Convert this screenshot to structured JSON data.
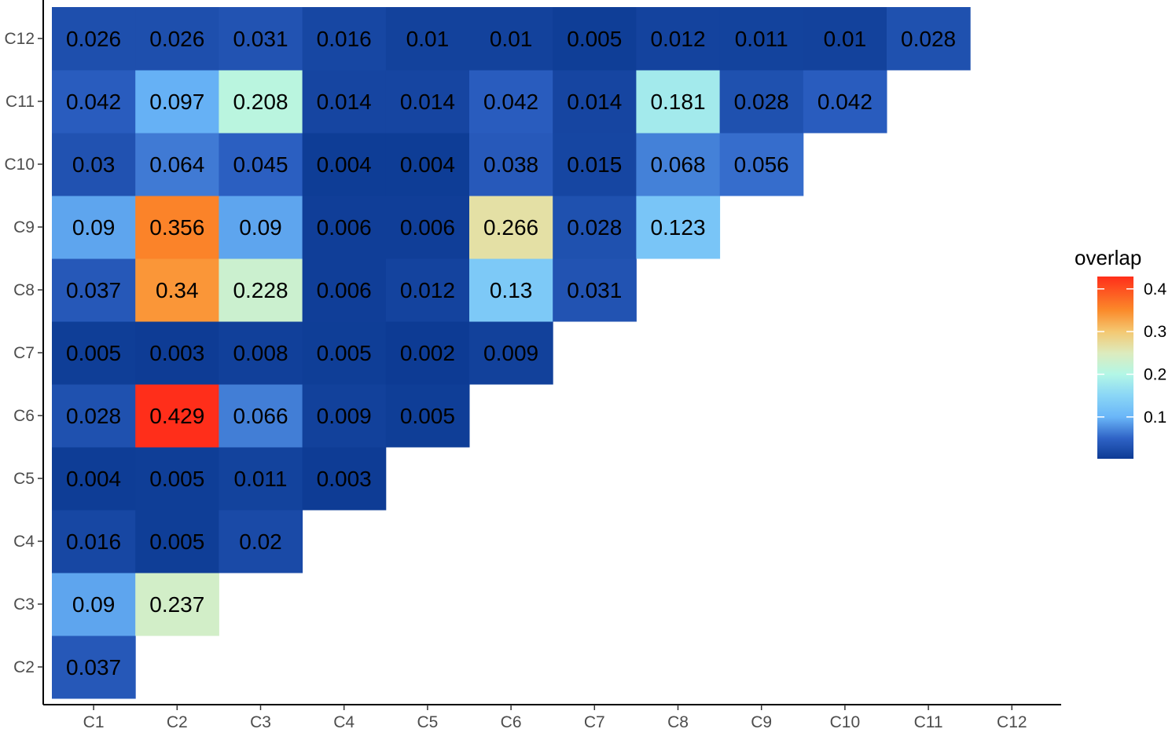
{
  "chart_data": {
    "type": "heatmap",
    "title": "",
    "xlabel": "",
    "ylabel": "",
    "x_categories": [
      "C1",
      "C2",
      "C3",
      "C4",
      "C5",
      "C6",
      "C7",
      "C8",
      "C9",
      "C10",
      "C11",
      "C12"
    ],
    "y_categories": [
      "C2",
      "C3",
      "C4",
      "C5",
      "C6",
      "C7",
      "C8",
      "C9",
      "C10",
      "C11",
      "C12"
    ],
    "rows": [
      {
        "y": "C2",
        "values": [
          0.037
        ]
      },
      {
        "y": "C3",
        "values": [
          0.09,
          0.237
        ]
      },
      {
        "y": "C4",
        "values": [
          0.016,
          0.005,
          0.02
        ]
      },
      {
        "y": "C5",
        "values": [
          0.004,
          0.005,
          0.011,
          0.003
        ]
      },
      {
        "y": "C6",
        "values": [
          0.028,
          0.429,
          0.066,
          0.009,
          0.005
        ]
      },
      {
        "y": "C7",
        "values": [
          0.005,
          0.003,
          0.008,
          0.005,
          0.002,
          0.009
        ]
      },
      {
        "y": "C8",
        "values": [
          0.037,
          0.34,
          0.228,
          0.006,
          0.012,
          0.13,
          0.031
        ]
      },
      {
        "y": "C9",
        "values": [
          0.09,
          0.356,
          0.09,
          0.006,
          0.006,
          0.266,
          0.028,
          0.123
        ]
      },
      {
        "y": "C10",
        "values": [
          0.03,
          0.064,
          0.045,
          0.004,
          0.004,
          0.038,
          0.015,
          0.068,
          0.056
        ]
      },
      {
        "y": "C11",
        "values": [
          0.042,
          0.097,
          0.208,
          0.014,
          0.014,
          0.042,
          0.014,
          0.181,
          0.028,
          0.042
        ]
      },
      {
        "y": "C12",
        "values": [
          0.026,
          0.026,
          0.031,
          0.016,
          0.01,
          0.01,
          0.005,
          0.012,
          0.011,
          0.01,
          0.028
        ]
      }
    ],
    "legend": {
      "title": "overlap",
      "position": "right",
      "range": [
        0.002,
        0.429
      ],
      "ticks": [
        0.1,
        0.2,
        0.3,
        0.4
      ],
      "tick_labels": [
        "0.1",
        "0.2",
        "0.3",
        "0.4"
      ]
    },
    "colorscale": [
      {
        "v": 0.002,
        "color": "#0D3B94"
      },
      {
        "v": 0.05,
        "color": "#2F63C6"
      },
      {
        "v": 0.1,
        "color": "#6AB6F8"
      },
      {
        "v": 0.15,
        "color": "#8AD6F6"
      },
      {
        "v": 0.2,
        "color": "#B3F7E6"
      },
      {
        "v": 0.25,
        "color": "#DDEBBD"
      },
      {
        "v": 0.3,
        "color": "#F4C872"
      },
      {
        "v": 0.35,
        "color": "#FB8A2A"
      },
      {
        "v": 0.429,
        "color": "#FF2E1A"
      }
    ],
    "grid": false
  }
}
